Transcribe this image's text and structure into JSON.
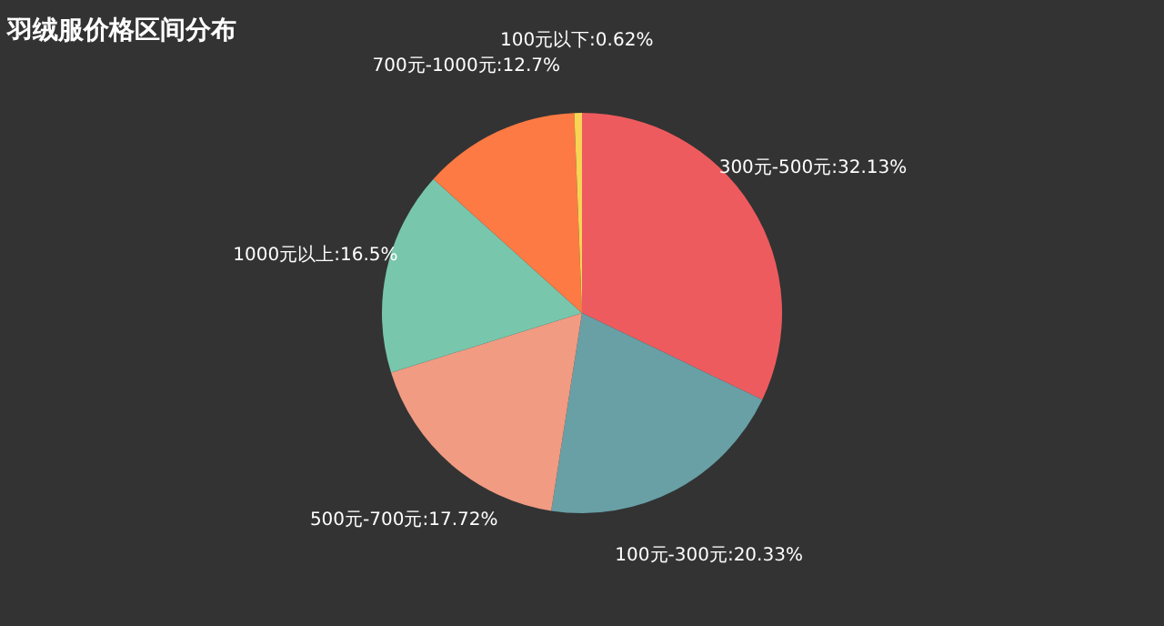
{
  "chart_data": {
    "type": "pie",
    "title": "羽绒服价格区间分布",
    "categories": [
      "300元-500元",
      "100元-300元",
      "500元-700元",
      "1000元以上",
      "700元-1000元",
      "100元以下"
    ],
    "values": [
      32.13,
      20.33,
      17.72,
      16.5,
      12.7,
      0.62
    ],
    "value_labels": [
      "32.13%",
      "20.33%",
      "17.72%",
      "16.5%",
      "12.7%",
      "0.62%"
    ],
    "colors": [
      "#ee5b5e",
      "#68a0a6",
      "#f09b82",
      "#78c6ac",
      "#fd7a44",
      "#f7d455"
    ],
    "legend": false
  }
}
